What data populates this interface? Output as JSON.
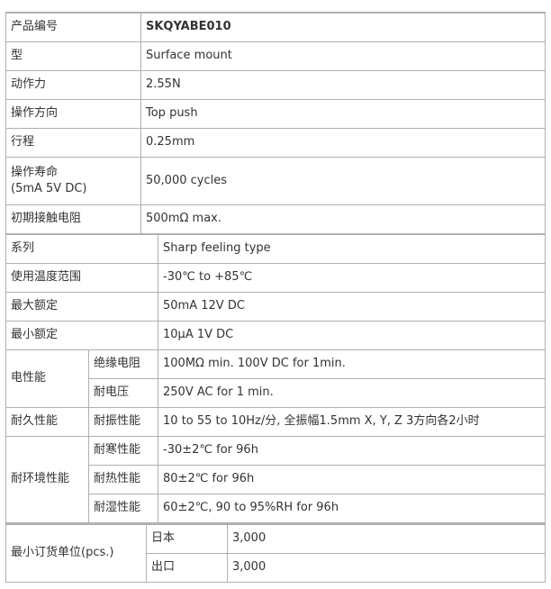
{
  "spec1": [
    {
      "label": "产品编号",
      "value": "SKQYABE010"
    },
    {
      "label": "型",
      "value": "Surface mount"
    },
    {
      "label": "动作力",
      "value": "2.55N"
    },
    {
      "label": "操作方向",
      "value": "Top push"
    },
    {
      "label": "行程",
      "value": "0.25mm"
    },
    {
      "label": "操作寿命",
      "label2": "(5mA 5V DC)",
      "value": "50,000 cycles"
    },
    {
      "label": "初期接触电阻",
      "value": "500mΩ max."
    }
  ],
  "spec2": {
    "series": {
      "label": "系列",
      "value": "Sharp feeling type"
    },
    "temp": {
      "label": "使用温度范围",
      "value": "-30℃ to +85℃"
    },
    "max": {
      "label": "最大额定",
      "value": "50mA 12V DC"
    },
    "min": {
      "label": "最小额定",
      "value": "10μA 1V DC"
    },
    "electrical": {
      "label": "电性能",
      "rows": [
        {
          "label": "绝缘电阻",
          "value": "100MΩ min. 100V DC for 1min."
        },
        {
          "label": "耐电压",
          "value": "250V AC for 1 min."
        }
      ]
    },
    "durability": {
      "label": "耐久性能",
      "rows": [
        {
          "label": "耐振性能",
          "value": "10 to 55 to 10Hz/分, 全振幅1.5mm X, Y, Z 3方向各2小时"
        }
      ]
    },
    "environment": {
      "label": "耐环境性能",
      "rows": [
        {
          "label": "耐寒性能",
          "value": "-30±2℃ for 96h"
        },
        {
          "label": "耐热性能",
          "value": "80±2℃ for 96h"
        },
        {
          "label": "耐湿性能",
          "value": "60±2℃, 90 to 95%RH for 96h"
        }
      ]
    }
  },
  "moq": {
    "label": "最小订货单位(pcs.)",
    "rows": [
      {
        "label": "日本",
        "value": "3,000"
      },
      {
        "label": "出口",
        "value": "3,000"
      }
    ]
  }
}
